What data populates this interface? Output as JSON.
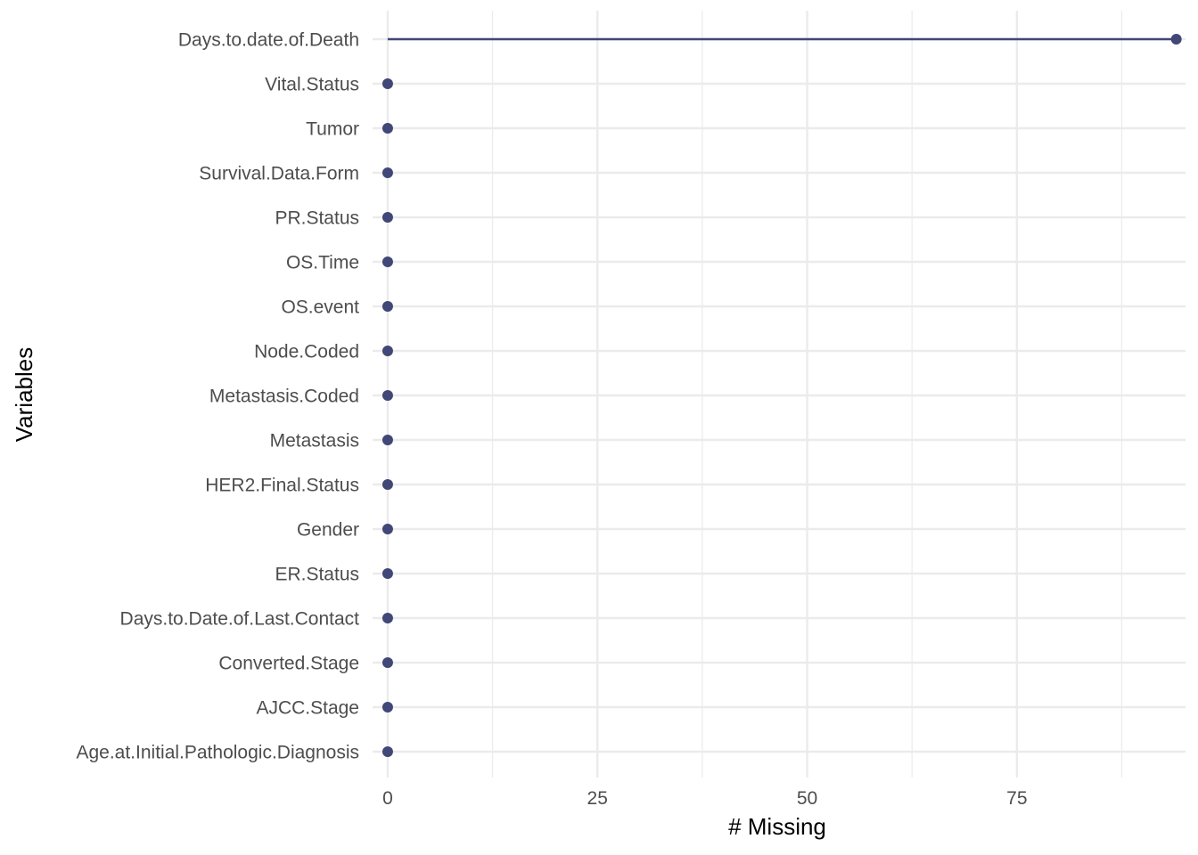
{
  "chart_data": {
    "type": "lollipop",
    "xlabel": "# Missing",
    "ylabel": "Variables",
    "xlim": [
      -1.8,
      95.1
    ],
    "x_ticks": [
      0,
      25,
      50,
      75
    ],
    "x_minor_ticks": [
      12.5,
      37.5,
      62.5,
      87.5
    ],
    "grid": true,
    "colors": {
      "point": "#414776",
      "grid": "#ebebeb",
      "tick_text": "#4d4d4d",
      "title_text": "#000000"
    },
    "categories": [
      "Days.to.date.of.Death",
      "Vital.Status",
      "Tumor",
      "Survival.Data.Form",
      "PR.Status",
      "OS.Time",
      "OS.event",
      "Node.Coded",
      "Metastasis.Coded",
      "Metastasis",
      "HER2.Final.Status",
      "Gender",
      "ER.Status",
      "Days.to.Date.of.Last.Contact",
      "Converted.Stage",
      "AJCC.Stage",
      "Age.at.Initial.Pathologic.Diagnosis"
    ],
    "values": [
      94,
      0,
      0,
      0,
      0,
      0,
      0,
      0,
      0,
      0,
      0,
      0,
      0,
      0,
      0,
      0,
      0
    ]
  }
}
